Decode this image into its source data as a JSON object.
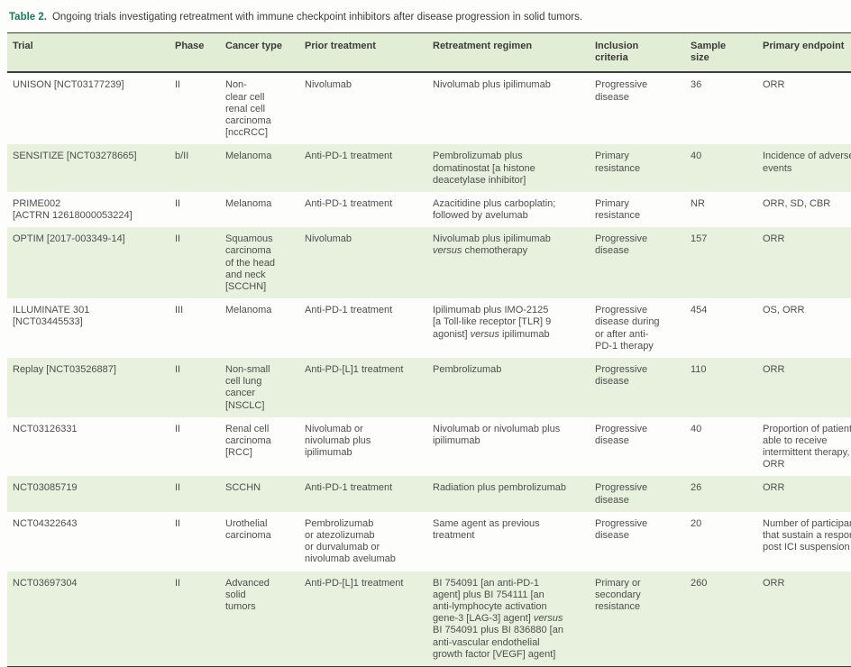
{
  "colors": {
    "accent_teal": "#177a63",
    "header_bg": "#e1edd4",
    "row_shaded_bg": "#e7f1dd",
    "border_dark": "#3d3d3d",
    "text": "#4e4e4e"
  },
  "table": {
    "label": "Table 2.",
    "caption": "Ongoing trials investigating retreatment with immune checkpoint inhibitors after disease progression in solid tumors.",
    "columns": [
      {
        "key": "trial",
        "label": "Trial"
      },
      {
        "key": "phase",
        "label": "Phase"
      },
      {
        "key": "cancer_type",
        "label": "Cancer type"
      },
      {
        "key": "prior_treatment",
        "label": "Prior treatment"
      },
      {
        "key": "retreatment_regimen",
        "label": "Retreatment regimen"
      },
      {
        "key": "inclusion_criteria",
        "label": "Inclusion\ncriteria"
      },
      {
        "key": "sample_size",
        "label": "Sample\nsize"
      },
      {
        "key": "primary_endpoint",
        "label": "Primary endpoint"
      }
    ],
    "rows": [
      {
        "shaded": false,
        "trial": "UNISON [NCT03177239]",
        "phase": "II",
        "cancer_type": "Non-\nclear cell\nrenal cell\ncarcinoma\n[nccRCC]",
        "prior_treatment": "Nivolumab",
        "retreatment_regimen": "Nivolumab plus ipilimumab",
        "inclusion_criteria": "Progressive\ndisease",
        "sample_size": "36",
        "primary_endpoint": "ORR"
      },
      {
        "shaded": true,
        "trial": "SENSITIZE [NCT03278665]",
        "phase": "b/II",
        "cancer_type": "Melanoma",
        "prior_treatment": "Anti-PD-1 treatment",
        "retreatment_regimen": "Pembrolizumab plus\ndomatinostat [a histone\ndeacetylase inhibitor]",
        "inclusion_criteria": "Primary\nresistance",
        "sample_size": "40",
        "primary_endpoint": "Incidence of adverse\nevents"
      },
      {
        "shaded": false,
        "trial": "PRIME002\n[ACTRN 12618000053224]",
        "phase": "II",
        "cancer_type": "Melanoma",
        "prior_treatment": "Anti-PD-1 treatment",
        "retreatment_regimen": "Azacitidine plus carboplatin;\nfollowed by avelumab",
        "inclusion_criteria": "Primary\nresistance",
        "sample_size": "NR",
        "primary_endpoint": "ORR, SD, CBR"
      },
      {
        "shaded": true,
        "trial": "OPTIM [2017-003349-14]",
        "phase": "II",
        "cancer_type": "Squamous\ncarcinoma\nof the head\nand neck\n[SCCHN]",
        "prior_treatment": "Nivolumab",
        "retreatment_regimen": "Nivolumab plus ipilimumab\nversus chemotherapy",
        "inclusion_criteria": "Progressive\ndisease",
        "sample_size": "157",
        "primary_endpoint": "ORR"
      },
      {
        "shaded": false,
        "trial": "ILLUMINATE 301\n[NCT03445533]",
        "phase": "III",
        "cancer_type": "Melanoma",
        "prior_treatment": "Anti-PD-1 treatment",
        "retreatment_regimen": "Ipilimumab plus IMO-2125\n[a Toll-like receptor [TLR] 9\nagonist] versus ipilimumab",
        "inclusion_criteria": "Progressive\ndisease during\nor after anti-\nPD-1 therapy",
        "sample_size": "454",
        "primary_endpoint": "OS, ORR"
      },
      {
        "shaded": true,
        "trial": "Replay [NCT03526887]",
        "phase": "II",
        "cancer_type": "Non-small\ncell lung\ncancer\n[NSCLC]",
        "prior_treatment": "Anti-PD-[L]1 treatment",
        "retreatment_regimen": "Pembrolizumab",
        "inclusion_criteria": "Progressive\ndisease",
        "sample_size": "110",
        "primary_endpoint": "ORR"
      },
      {
        "shaded": false,
        "trial": "NCT03126331",
        "phase": "II",
        "cancer_type": "Renal cell\ncarcinoma\n[RCC]",
        "prior_treatment": "Nivolumab or\nnivolumab plus\nipilimumab",
        "retreatment_regimen": "Nivolumab or nivolumab plus\nipilimumab",
        "inclusion_criteria": "Progressive\ndisease",
        "sample_size": "40",
        "primary_endpoint": "Proportion of patients\nable to receive\nintermittent therapy,\nORR"
      },
      {
        "shaded": true,
        "trial": "NCT03085719",
        "phase": "II",
        "cancer_type": "SCCHN",
        "prior_treatment": "Anti-PD-1 treatment",
        "retreatment_regimen": "Radiation plus pembrolizumab",
        "inclusion_criteria": "Progressive\ndisease",
        "sample_size": "26",
        "primary_endpoint": "ORR"
      },
      {
        "shaded": false,
        "trial": "NCT04322643",
        "phase": "II",
        "cancer_type": "Urothelial\ncarcinoma",
        "prior_treatment": "Pembrolizumab\nor atezolizumab\nor durvalumab or\nnivolumab avelumab",
        "retreatment_regimen": "Same agent as previous\ntreatment",
        "inclusion_criteria": "Progressive\ndisease",
        "sample_size": "20",
        "primary_endpoint": "Number of participants\nthat sustain a response\npost ICI suspension"
      },
      {
        "shaded": true,
        "trial": "NCT03697304",
        "phase": "II",
        "cancer_type": "Advanced\nsolid\ntumors",
        "prior_treatment": "Anti-PD-[L]1 treatment",
        "retreatment_regimen": "BI 754091 [an anti-PD-1\nagent] plus BI 754111 [an\nanti-lymphocyte activation\ngene-3 [LAG-3] agent] versus\nBI 754091 plus BI 836880 [an\nanti-vascular endothelial\ngrowth factor [VEGF] agent]",
        "inclusion_criteria": "Primary or\nsecondary\nresistance",
        "sample_size": "260",
        "primary_endpoint": "ORR"
      }
    ]
  }
}
